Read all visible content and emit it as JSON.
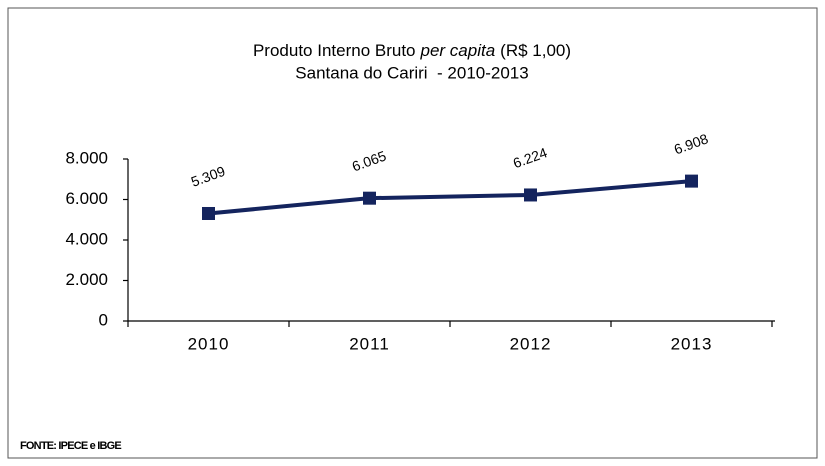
{
  "chart_data": {
    "type": "line",
    "title": [
      "Produto Interno Bruto",
      "per capita",
      "(R$ 1,00)"
    ],
    "subtitle": "Santana do Cariri  - 2010-2013",
    "categories": [
      "2010",
      "2011",
      "2012",
      "2013"
    ],
    "series": [
      {
        "color": "#14245e",
        "values": [
          5309,
          6065,
          6224,
          6908
        ],
        "value_labels": [
          "5.309",
          "6.065",
          "6.224",
          "6.908"
        ]
      }
    ],
    "ylim": [
      0,
      8000
    ],
    "yticks": [
      0,
      {
        "value": 2000,
        "label": "2.000"
      },
      {
        "value": 4000,
        "label": "4.000"
      },
      {
        "value": 6000,
        "label": "6.000"
      },
      {
        "value": 8000,
        "label": "8.000"
      }
    ],
    "source": "FONTE: IPECE e IBGE"
  }
}
